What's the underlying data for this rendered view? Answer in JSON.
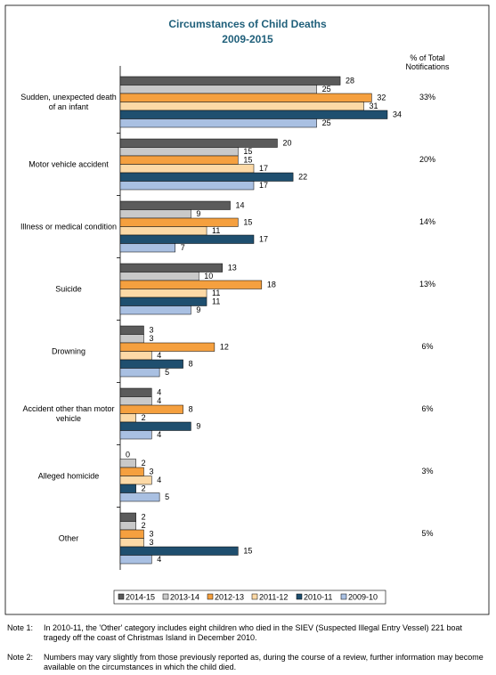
{
  "chart_data": {
    "type": "hbar",
    "title": "Circumstances of Child Deaths",
    "subtitle": "2009-2015",
    "share_header": "% of Total Notifications",
    "categories": [
      "Sudden, unexpected death of an infant",
      "Motor vehicle accident",
      "Illness or medical condition",
      "Suicide",
      "Drowning",
      "Accident other than motor vehicle",
      "Alleged homicide",
      "Other"
    ],
    "shares": [
      "33%",
      "20%",
      "14%",
      "13%",
      "6%",
      "6%",
      "3%",
      "5%"
    ],
    "xlim": [
      0,
      34
    ],
    "series": [
      {
        "name": "2014-15",
        "color": "#5b5b5b",
        "values": [
          28,
          20,
          14,
          13,
          3,
          4,
          0,
          2
        ]
      },
      {
        "name": "2013-14",
        "color": "#c9c9c9",
        "values": [
          25,
          15,
          9,
          10,
          3,
          4,
          2,
          2
        ]
      },
      {
        "name": "2012-13",
        "color": "#f5a03f",
        "values": [
          32,
          15,
          15,
          18,
          12,
          8,
          3,
          3
        ]
      },
      {
        "name": "2011-12",
        "color": "#fcd9a6",
        "values": [
          31,
          17,
          11,
          11,
          4,
          2,
          4,
          3
        ]
      },
      {
        "name": "2010-11",
        "color": "#1f4f6f",
        "values": [
          34,
          22,
          17,
          11,
          8,
          9,
          2,
          15
        ]
      },
      {
        "name": "2009-10",
        "color": "#a9c0e2",
        "values": [
          25,
          17,
          7,
          9,
          5,
          4,
          5,
          4
        ]
      }
    ]
  },
  "notes": [
    {
      "label": "Note 1:",
      "text": "In 2010-11, the 'Other' category includes eight children who died in the SIEV (Suspected Illegal Entry Vessel) 221 boat tragedy off the coast of Christmas Island in December 2010."
    },
    {
      "label": "Note 2:",
      "text": "Numbers may vary slightly from those previously reported as, during the course of a review, further information may become available on the circumstances in which the child died."
    }
  ]
}
